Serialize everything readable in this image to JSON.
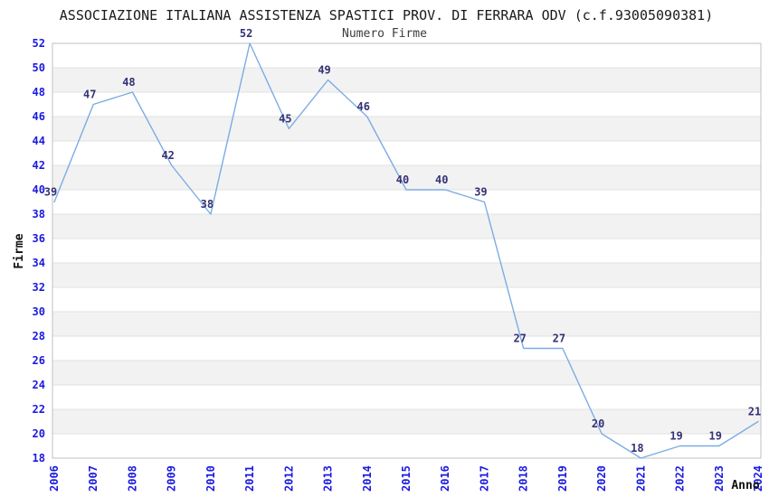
{
  "chart_data": {
    "type": "line",
    "title": "ASSOCIAZIONE ITALIANA ASSISTENZA SPASTICI PROV. DI FERRARA ODV (c.f.93005090381)",
    "subtitle": "Numero Firme",
    "xlabel": "Anno",
    "ylabel": "Firme",
    "categories": [
      "2006",
      "2007",
      "2008",
      "2009",
      "2010",
      "2011",
      "2012",
      "2013",
      "2014",
      "2015",
      "2016",
      "2017",
      "2018",
      "2019",
      "2020",
      "2021",
      "2022",
      "2023",
      "2024"
    ],
    "values": [
      39,
      47,
      48,
      42,
      38,
      52,
      45,
      49,
      46,
      40,
      40,
      39,
      27,
      27,
      20,
      18,
      19,
      19,
      21
    ],
    "ylim": [
      18,
      52
    ],
    "ytick_step": 2,
    "legend": "none",
    "grid": "horizontal-bands",
    "colors": {
      "line": "#7cace4",
      "point_label": "#333377",
      "tick_label": "#1a1ae0",
      "band": "#f2f2f2",
      "gridline": "#e2e2e2",
      "plot_border": "#c0c0c0",
      "title": "#1a1a1a",
      "subtitle": "#3c3c3c",
      "axis_title": "#111111",
      "background": "#ffffff"
    }
  }
}
